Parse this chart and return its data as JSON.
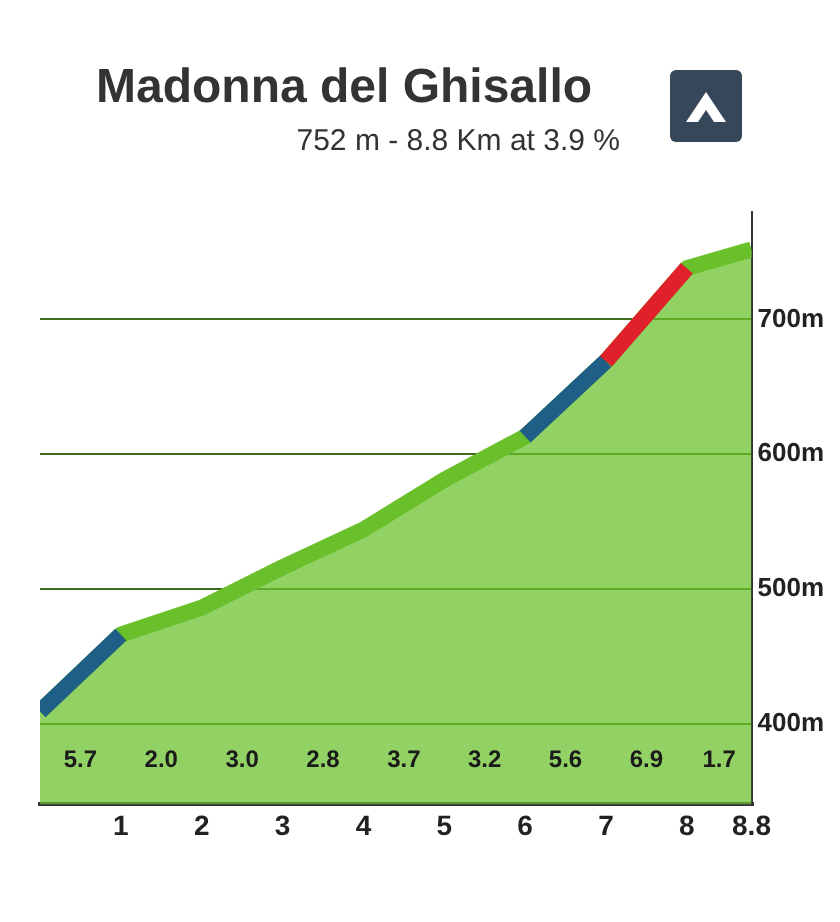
{
  "chart_data": {
    "type": "area",
    "title": "Madonna del Ghisallo",
    "subtitle": "752 m - 8.8 Km at 3.9 %",
    "x": [
      0,
      1,
      2,
      3,
      4,
      5,
      6,
      7,
      8,
      8.8
    ],
    "series": [
      {
        "color": "#6ac02a",
        "values": [
          409,
          466,
          486,
          516,
          544,
          581,
          613,
          669,
          738,
          752
        ]
      },
      {
        "type": "line",
        "color": "#1f5f87",
        "values": [
          409,
          466,
          null,
          null,
          null,
          null,
          613,
          669,
          null,
          null
        ]
      },
      {
        "type": "line",
        "color": "#e0202a",
        "values": [
          null,
          null,
          null,
          null,
          null,
          null,
          null,
          669,
          738,
          null
        ]
      }
    ],
    "xlim": [
      0,
      8.8
    ],
    "xticks": [
      1,
      2,
      3,
      4,
      5,
      6,
      7,
      8,
      8.8
    ],
    "ylim": [
      340,
      780
    ],
    "yticks": [
      {
        "value": 400,
        "label": "400m"
      },
      {
        "value": 500,
        "label": "500m"
      },
      {
        "value": 600,
        "label": "600m"
      },
      {
        "value": 700,
        "label": "700m"
      }
    ],
    "grid": true,
    "legend": false,
    "marker": "none",
    "annotations": [
      "5.7",
      "2.0",
      "3.0",
      "2.8",
      "3.7",
      "3.2",
      "5.6",
      "6.9",
      "1.7"
    ]
  }
}
